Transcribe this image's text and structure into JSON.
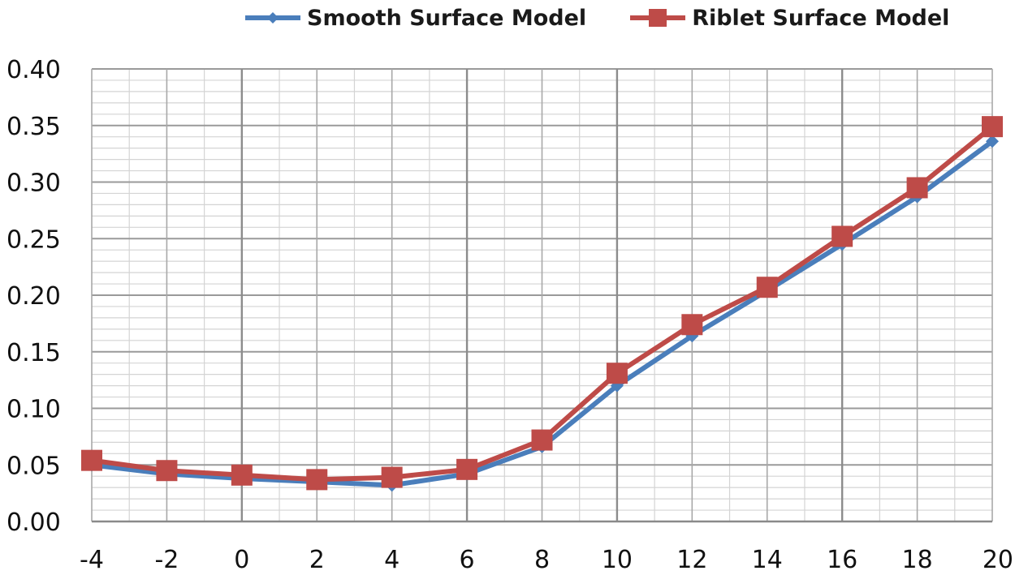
{
  "chart_data": {
    "type": "line",
    "title": "",
    "xlabel": "",
    "ylabel": "",
    "x": [
      -4,
      -2,
      0,
      2,
      4,
      6,
      8,
      10,
      12,
      14,
      16,
      18,
      20
    ],
    "xlim": [
      -4,
      20
    ],
    "ylim": [
      0,
      0.4
    ],
    "x_ticks": [
      "-4",
      "-2",
      "0",
      "2",
      "4",
      "6",
      "8",
      "10",
      "12",
      "14",
      "16",
      "18",
      "20"
    ],
    "y_ticks": [
      "0.00",
      "0.05",
      "0.10",
      "0.15",
      "0.20",
      "0.25",
      "0.30",
      "0.35",
      "0.40"
    ],
    "grid": true,
    "legend_position": "top",
    "series": [
      {
        "name": "Smooth Surface Model",
        "color": "#4a7ebb",
        "marker": "diamond",
        "values": [
          0.05,
          0.042,
          0.038,
          0.035,
          0.032,
          0.042,
          0.066,
          0.12,
          0.164,
          0.204,
          0.245,
          0.287,
          0.336
        ]
      },
      {
        "name": "Riblet Surface Model",
        "color": "#be4b48",
        "marker": "square",
        "values": [
          0.054,
          0.045,
          0.041,
          0.037,
          0.039,
          0.046,
          0.072,
          0.131,
          0.174,
          0.207,
          0.252,
          0.295,
          0.349
        ]
      }
    ]
  }
}
